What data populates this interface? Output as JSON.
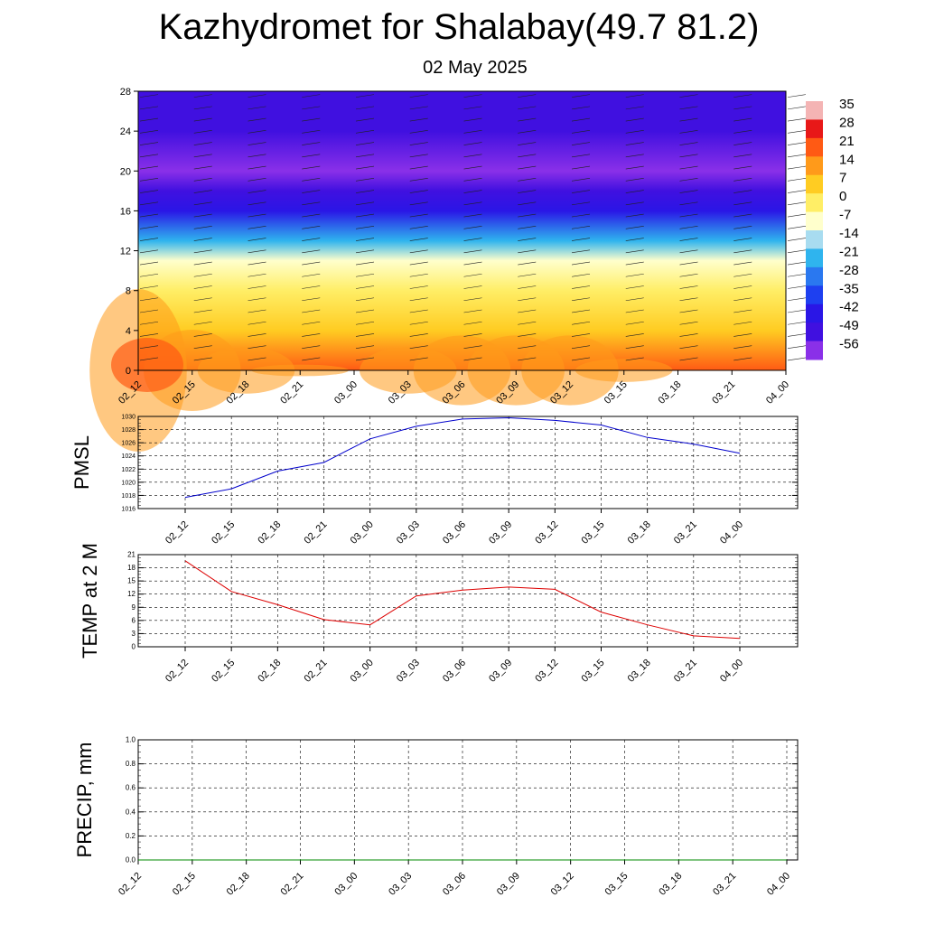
{
  "header": {
    "title": "Kazhydromet for Shalabay(49.7 81.2)",
    "subtitle": "02 May 2025"
  },
  "chart_data": [
    {
      "type": "heatmap",
      "name": "temperature-wind-cross-section",
      "x_labels": [
        "02_12",
        "02_15",
        "02_18",
        "02_21",
        "03_00",
        "03_03",
        "03_06",
        "03_09",
        "03_12",
        "03_15",
        "03_18",
        "03_21",
        "04_00"
      ],
      "y_ticks": [
        0,
        4,
        8,
        12,
        16,
        20,
        24,
        28
      ],
      "ylim": [
        0,
        28
      ],
      "colorbar": {
        "labels": [
          "35",
          "28",
          "21",
          "14",
          "7",
          "0",
          "-7",
          "-14",
          "-21",
          "-28",
          "-35",
          "-42",
          "-49",
          "-56"
        ],
        "colors": [
          "#f4b4b4",
          "#e81818",
          "#ff5a14",
          "#ff9a1a",
          "#ffcc22",
          "#ffee66",
          "#ffffcc",
          "#a8dcf0",
          "#2fb4ee",
          "#2a78f0",
          "#1e40f0",
          "#2a16e6",
          "#4010e0",
          "#8a30e8"
        ]
      },
      "surface_temp_by_time": [
        20,
        13,
        10,
        7,
        6,
        10,
        12,
        12,
        12,
        8,
        5,
        3,
        2
      ],
      "vertical_profile": [
        {
          "level": 0,
          "temp": 18
        },
        {
          "level": 4,
          "temp": 8
        },
        {
          "level": 8,
          "temp": 1
        },
        {
          "level": 11,
          "temp": -8
        },
        {
          "level": 13,
          "temp": -22
        },
        {
          "level": 16,
          "temp": -40
        },
        {
          "level": 18,
          "temp": -50
        },
        {
          "level": 20,
          "temp": -54
        },
        {
          "level": 24,
          "temp": -50
        },
        {
          "level": 28,
          "temp": -46
        }
      ],
      "grid": true
    },
    {
      "type": "line",
      "ylabel": "PMSL",
      "x_labels": [
        "02_12",
        "02_15",
        "02_18",
        "02_21",
        "03_00",
        "03_03",
        "03_06",
        "03_09",
        "03_12",
        "03_15",
        "03_18",
        "03_21",
        "04_00"
      ],
      "y_ticks": [
        1016,
        1018,
        1020,
        1022,
        1024,
        1026,
        1028,
        1030
      ],
      "ylim": [
        1016,
        1030
      ],
      "values": [
        1017.7,
        1019.0,
        1021.7,
        1023.0,
        1026.6,
        1028.5,
        1029.6,
        1029.8,
        1029.4,
        1028.7,
        1026.8,
        1025.8,
        1024.4
      ],
      "color": "#0000cc",
      "grid": true
    },
    {
      "type": "line",
      "ylabel": "TEMP at 2 M",
      "x_labels": [
        "02_12",
        "02_15",
        "02_18",
        "02_21",
        "03_00",
        "03_03",
        "03_06",
        "03_09",
        "03_12",
        "03_15",
        "03_18",
        "03_21",
        "04_00"
      ],
      "y_ticks": [
        0,
        3,
        6,
        9,
        12,
        15,
        18,
        21
      ],
      "ylim": [
        0,
        21
      ],
      "values": [
        19.6,
        12.6,
        9.6,
        6.2,
        5.0,
        11.6,
        12.9,
        13.6,
        13.1,
        7.9,
        5.0,
        2.5,
        1.9
      ],
      "color": "#dd0000",
      "grid": true
    },
    {
      "type": "line",
      "ylabel": "PRECIP, mm",
      "x_labels": [
        "02_12",
        "02_15",
        "02_18",
        "02_21",
        "03_00",
        "03_03",
        "03_06",
        "03_09",
        "03_12",
        "03_15",
        "03_18",
        "03_21",
        "04_00"
      ],
      "y_ticks": [
        "0.0",
        "0.2",
        "0.4",
        "0.6",
        "0.8",
        "1.0"
      ],
      "ylim": [
        0,
        1
      ],
      "values": [
        0,
        0,
        0,
        0,
        0,
        0,
        0,
        0,
        0,
        0,
        0,
        0,
        0
      ],
      "color": "#008800",
      "grid": true
    }
  ]
}
